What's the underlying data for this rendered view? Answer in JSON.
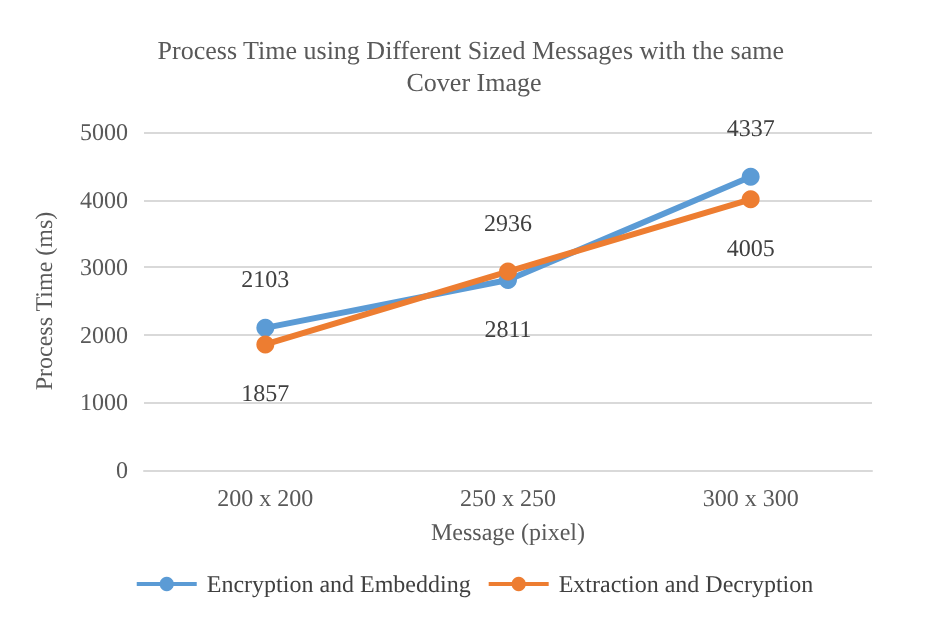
{
  "chart_data": {
    "type": "line",
    "title": "Process Time using Different Sized Messages with the same Cover Image",
    "xlabel": "Message (pixel)",
    "ylabel": "Process Time (ms)",
    "categories": [
      "200 x 200",
      "250 x 250",
      "300 x 300"
    ],
    "series": [
      {
        "name": "Encryption and Embedding",
        "color": "#5b9bd5",
        "values": [
          2103,
          2811,
          4337
        ]
      },
      {
        "name": "Extraction and Decryption",
        "color": "#ed7d31",
        "values": [
          1857,
          2936,
          4005
        ]
      }
    ],
    "ylim": [
      0,
      5000
    ],
    "yticks": [
      0,
      1000,
      2000,
      3000,
      4000,
      5000
    ],
    "grid": "y",
    "legend": "bottom",
    "marker": "circle",
    "line_style": "solid",
    "data_labels": true
  }
}
